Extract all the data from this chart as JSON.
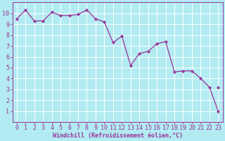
{
  "x_pts": [
    0,
    1,
    2,
    3,
    4,
    5,
    6,
    7,
    8,
    9,
    10,
    11,
    12,
    13,
    14,
    15,
    16,
    17,
    18,
    19,
    20,
    21,
    22,
    23
  ],
  "y_pts": [
    9.5,
    10.3,
    9.3,
    9.3,
    10.1,
    9.8,
    9.8,
    9.9,
    10.3,
    9.5,
    9.2,
    7.3,
    7.9,
    5.2,
    6.3,
    6.5,
    7.2,
    7.4,
    4.6,
    4.7,
    4.7,
    4.0,
    3.2,
    1.0
  ],
  "extra_dot_x": [
    23
  ],
  "extra_dot_y": [
    3.2
  ],
  "line_color": "#993399",
  "marker_color": "#993399",
  "bg_color": "#b2ebf2",
  "grid_color": "#aadddd",
  "xlabel": "Windchill (Refroidissement éolien,°C)",
  "xlim": [
    -0.5,
    23.5
  ],
  "ylim": [
    0,
    11
  ],
  "yticks": [
    1,
    2,
    3,
    4,
    5,
    6,
    7,
    8,
    9,
    10
  ],
  "xticks": [
    0,
    1,
    2,
    3,
    4,
    5,
    6,
    7,
    8,
    9,
    10,
    11,
    12,
    13,
    14,
    15,
    16,
    17,
    18,
    19,
    20,
    21,
    22,
    23
  ],
  "tick_fontsize": 6,
  "xlabel_fontsize": 6,
  "line_width": 0.9,
  "marker_size": 2.2
}
